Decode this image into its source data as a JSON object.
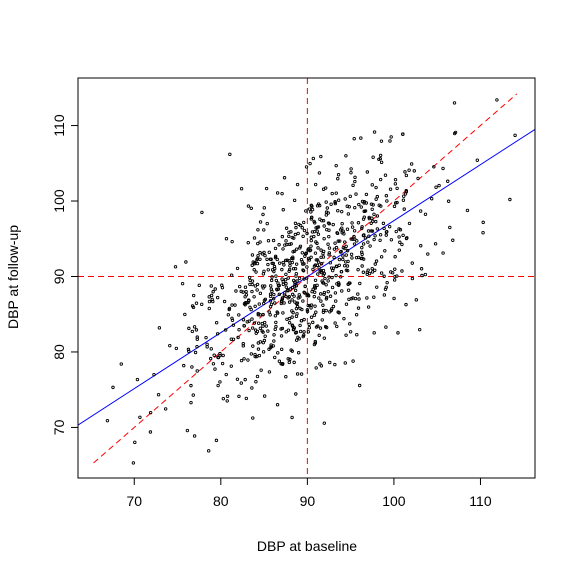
{
  "chart_data": {
    "type": "scatter",
    "title": "",
    "xlabel": "DBP at baseline",
    "ylabel": "DBP at follow-up",
    "xlim": [
      63.5,
      116.3
    ],
    "ylim": [
      63.3,
      116.3
    ],
    "xticks": [
      70,
      80,
      90,
      100,
      110
    ],
    "yticks": [
      70,
      80,
      90,
      100,
      110
    ],
    "grid": false,
    "legend": "none",
    "n_points": 900,
    "x_mean": 90,
    "x_sd": 7,
    "y_mean": 90,
    "y_sd": 7.5,
    "correlation": 0.6,
    "seed": 20240,
    "anchor_points": [
      [
        69.9,
        65.3
      ],
      [
        111.9,
        113.4
      ],
      [
        107.0,
        113.0
      ],
      [
        113.4,
        100.2
      ],
      [
        78.6,
        66.9
      ],
      [
        68.5,
        78.4
      ],
      [
        114.0,
        108.7
      ],
      [
        106.8,
        94.8
      ],
      [
        110.3,
        95.8
      ],
      [
        66.9,
        70.9
      ]
    ],
    "reference_lines": [
      {
        "name": "baseline-mean",
        "orientation": "vertical",
        "value": 90,
        "color": "#ff0000",
        "style": "dashed"
      },
      {
        "name": "followup-mean",
        "orientation": "horizontal",
        "value": 90,
        "color": "#ff0000",
        "style": "dashed"
      },
      {
        "name": "identity",
        "type": "abline",
        "intercept": 0,
        "slope": 1,
        "x_range": [
          65.3,
          114.2
        ],
        "color": "#ff0000",
        "style": "dashed"
      },
      {
        "name": "regression",
        "type": "abline",
        "intercept": 23.2,
        "slope": 0.742,
        "color": "#0000ff",
        "style": "solid"
      }
    ],
    "colors": {
      "points": "#000000",
      "axes": "#000000",
      "mean_lines": "#ff0000",
      "regression": "#0000ff"
    }
  }
}
